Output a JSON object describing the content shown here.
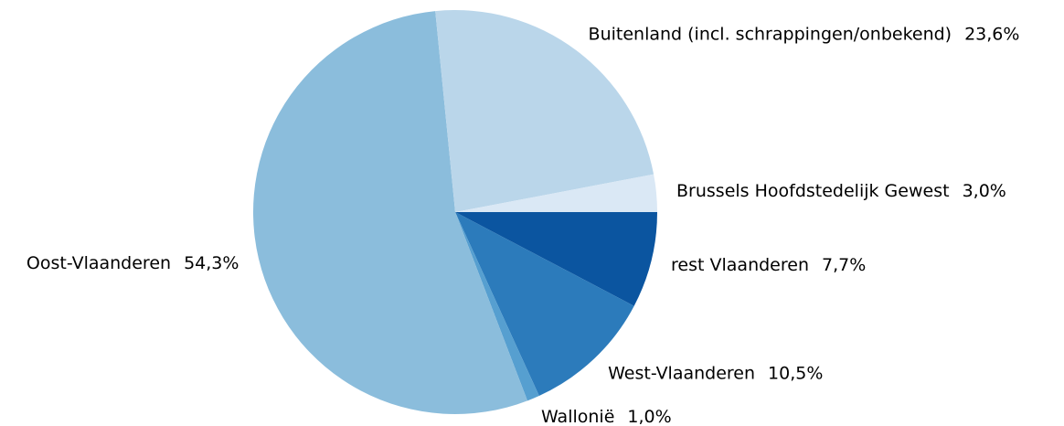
{
  "chart_data": {
    "type": "pie",
    "categories": [
      "rest Vlaanderen",
      "West-Vlaanderen",
      "Wallonië",
      "Oost-Vlaanderen",
      "Buitenland (incl. schrappingen/onbekend)",
      "Brussels Hoofdstedelijk Gewest"
    ],
    "values": [
      7.7,
      10.5,
      1.0,
      54.3,
      23.6,
      3.0
    ],
    "value_labels": [
      "7,7%",
      "10,5%",
      "1,0%",
      "54,3%",
      "23,6%",
      "3,0%"
    ],
    "colors": [
      "#0b55a0",
      "#2c7bbb",
      "#569fd0",
      "#8bbddc",
      "#bad6ea",
      "#dae8f5"
    ]
  }
}
